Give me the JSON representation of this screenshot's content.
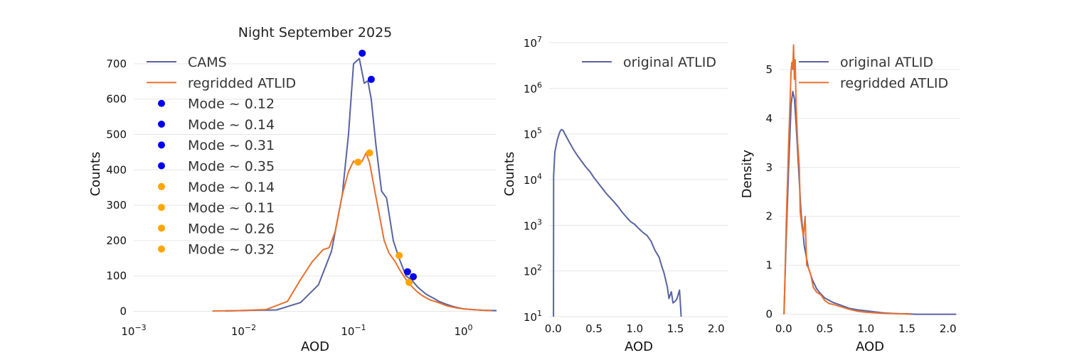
{
  "colors": {
    "blue_line": "#5863a1",
    "orange_line": "#e8702e",
    "blue_marker": "#0000ee",
    "orange_marker": "#ffa500"
  },
  "chart_data": [
    {
      "type": "line",
      "title": "Night September 2025",
      "xlabel": "AOD",
      "ylabel": "Counts",
      "xscale": "log",
      "xlim": [
        0.001,
        2
      ],
      "ylim": [
        -15,
        760
      ],
      "grid": "horizontal",
      "legend_position": "top-left",
      "xticks": [
        {
          "value": 0.001,
          "base": "10",
          "exp": "−3"
        },
        {
          "value": 0.01,
          "base": "10",
          "exp": "−2"
        },
        {
          "value": 0.1,
          "base": "10",
          "exp": "−1"
        },
        {
          "value": 1,
          "base": "10",
          "exp": "0"
        }
      ],
      "yticks": [
        {
          "value": 0,
          "label": "0"
        },
        {
          "value": 100,
          "label": "100"
        },
        {
          "value": 200,
          "label": "200"
        },
        {
          "value": 300,
          "label": "300"
        },
        {
          "value": 400,
          "label": "400"
        },
        {
          "value": 500,
          "label": "500"
        },
        {
          "value": 600,
          "label": "600"
        },
        {
          "value": 700,
          "label": "700"
        }
      ],
      "series": [
        {
          "name": "CAMS",
          "color": "#5863a1",
          "x": [
            0.0068,
            0.012,
            0.02,
            0.033,
            0.048,
            0.063,
            0.079,
            0.09,
            0.1,
            0.113,
            0.125,
            0.135,
            0.145,
            0.16,
            0.18,
            0.2,
            0.23,
            0.26,
            0.3,
            0.34,
            0.38,
            0.42,
            0.46,
            0.5,
            0.55,
            0.6,
            0.7,
            0.8,
            0.9,
            1.0,
            1.2,
            1.5,
            2.0
          ],
          "y": [
            1,
            3,
            4,
            25,
            75,
            170,
            330,
            500,
            700,
            715,
            645,
            652,
            600,
            470,
            340,
            320,
            200,
            150,
            100,
            88,
            70,
            58,
            48,
            42,
            35,
            28,
            20,
            14,
            10,
            7,
            5,
            3,
            2
          ]
        },
        {
          "name": "regridded ATLID",
          "color": "#e8702e",
          "x": [
            0.0052,
            0.009,
            0.016,
            0.025,
            0.033,
            0.042,
            0.053,
            0.06,
            0.068,
            0.079,
            0.09,
            0.1,
            0.11,
            0.12,
            0.13,
            0.14,
            0.15,
            0.17,
            0.19,
            0.21,
            0.24,
            0.26,
            0.3,
            0.34,
            0.38,
            0.42,
            0.46,
            0.5,
            0.55,
            0.6,
            0.7,
            0.8,
            0.9,
            1.0,
            1.2,
            1.5,
            1.8
          ],
          "y": [
            1,
            2,
            5,
            28,
            90,
            140,
            175,
            180,
            225,
            330,
            395,
            425,
            415,
            425,
            448,
            420,
            370,
            280,
            200,
            165,
            140,
            120,
            90,
            70,
            55,
            45,
            38,
            32,
            28,
            24,
            16,
            12,
            9,
            7,
            5,
            3,
            2
          ]
        }
      ],
      "modes": [
        {
          "label": "Mode ~ 0.12",
          "x": 0.12,
          "y": 730,
          "color": "#0000ee"
        },
        {
          "label": "Mode ~ 0.14",
          "x": 0.145,
          "y": 656,
          "color": "#0000ee"
        },
        {
          "label": "Mode ~ 0.31",
          "x": 0.31,
          "y": 112,
          "color": "#0000ee"
        },
        {
          "label": "Mode ~ 0.35",
          "x": 0.35,
          "y": 98,
          "color": "#0000ee"
        },
        {
          "label": "Mode ~ 0.14",
          "x": 0.14,
          "y": 448,
          "color": "#ffa500"
        },
        {
          "label": "Mode ~ 0.11",
          "x": 0.11,
          "y": 422,
          "color": "#ffa500"
        },
        {
          "label": "Mode ~ 0.26",
          "x": 0.26,
          "y": 158,
          "color": "#ffa500"
        },
        {
          "label": "Mode ~ 0.32",
          "x": 0.32,
          "y": 82,
          "color": "#ffa500"
        }
      ]
    },
    {
      "type": "line",
      "title": "",
      "xlabel": "AOD",
      "ylabel": "Counts",
      "yscale": "log",
      "xlim": [
        -0.05,
        2.15
      ],
      "ylim": [
        10,
        10000000
      ],
      "grid": "horizontal",
      "legend_position": "top-right",
      "xticks": [
        {
          "value": 0,
          "label": "0.0"
        },
        {
          "value": 0.5,
          "label": "0.5"
        },
        {
          "value": 1.0,
          "label": "1.0"
        },
        {
          "value": 1.5,
          "label": "1.5"
        },
        {
          "value": 2.0,
          "label": "2.0"
        }
      ],
      "yticks": [
        {
          "value": 10,
          "base": "10",
          "exp": "1"
        },
        {
          "value": 100,
          "base": "10",
          "exp": "2"
        },
        {
          "value": 1000,
          "base": "10",
          "exp": "3"
        },
        {
          "value": 10000,
          "base": "10",
          "exp": "4"
        },
        {
          "value": 100000,
          "base": "10",
          "exp": "5"
        },
        {
          "value": 1000000,
          "base": "10",
          "exp": "6"
        },
        {
          "value": 10000000,
          "base": "10",
          "exp": "7"
        }
      ],
      "series": [
        {
          "name": "original ATLID",
          "color": "#5863a1",
          "x": [
            0.003,
            0.005,
            0.02,
            0.05,
            0.08,
            0.1,
            0.12,
            0.15,
            0.2,
            0.25,
            0.3,
            0.35,
            0.4,
            0.45,
            0.5,
            0.55,
            0.6,
            0.65,
            0.7,
            0.75,
            0.8,
            0.85,
            0.9,
            0.95,
            1.0,
            1.05,
            1.1,
            1.15,
            1.2,
            1.25,
            1.3,
            1.33,
            1.36,
            1.4,
            1.42,
            1.45,
            1.47,
            1.5,
            1.52,
            1.55,
            1.57
          ],
          "y": [
            10,
            12000,
            40000,
            75000,
            110000,
            125000,
            120000,
            95000,
            65000,
            45000,
            33000,
            25000,
            19000,
            15000,
            11000,
            8500,
            6500,
            5000,
            4000,
            3200,
            2500,
            1900,
            1500,
            1200,
            1050,
            850,
            700,
            600,
            450,
            280,
            200,
            130,
            90,
            45,
            25,
            35,
            20,
            22,
            25,
            38,
            10
          ]
        }
      ]
    },
    {
      "type": "line",
      "title": "",
      "xlabel": "AOD",
      "ylabel": "Density",
      "xlim": [
        -0.05,
        2.15
      ],
      "ylim": [
        -0.05,
        5.55
      ],
      "grid": "horizontal",
      "legend_position": "top-center",
      "xticks": [
        {
          "value": 0,
          "label": "0.0"
        },
        {
          "value": 0.5,
          "label": "0.5"
        },
        {
          "value": 1.0,
          "label": "1.0"
        },
        {
          "value": 1.5,
          "label": "1.5"
        },
        {
          "value": 2.0,
          "label": "2.0"
        }
      ],
      "yticks": [
        {
          "value": 0,
          "label": "0"
        },
        {
          "value": 1,
          "label": "1"
        },
        {
          "value": 2,
          "label": "2"
        },
        {
          "value": 3,
          "label": "3"
        },
        {
          "value": 4,
          "label": "4"
        },
        {
          "value": 5,
          "label": "5"
        }
      ],
      "series": [
        {
          "name": "original ATLID",
          "color": "#5863a1",
          "x": [
            0.003,
            0.03,
            0.06,
            0.09,
            0.11,
            0.13,
            0.15,
            0.18,
            0.21,
            0.25,
            0.3,
            0.35,
            0.4,
            0.45,
            0.5,
            0.6,
            0.7,
            0.8,
            0.9,
            1.0,
            1.1,
            1.2,
            1.3,
            1.4,
            1.5,
            1.6,
            1.8,
            2.0,
            2.1
          ],
          "y": [
            0,
            1.5,
            3.0,
            4.3,
            4.55,
            4.4,
            3.9,
            3.0,
            2.1,
            1.4,
            0.95,
            0.7,
            0.52,
            0.42,
            0.33,
            0.24,
            0.18,
            0.12,
            0.09,
            0.07,
            0.05,
            0.03,
            0.02,
            0.01,
            0.01,
            0.0,
            0.0,
            0.0,
            0.0
          ]
        },
        {
          "name": "regridded ATLID",
          "color": "#e8702e",
          "x": [
            0.005,
            0.03,
            0.06,
            0.09,
            0.1,
            0.11,
            0.12,
            0.13,
            0.14,
            0.15,
            0.17,
            0.19,
            0.2,
            0.22,
            0.24,
            0.26,
            0.28,
            0.3,
            0.33,
            0.36,
            0.4,
            0.45,
            0.5,
            0.55,
            0.6,
            0.7,
            0.8,
            0.9,
            1.0,
            1.2,
            1.4,
            1.55
          ],
          "y": [
            0,
            1.8,
            3.5,
            5.0,
            5.15,
            5.0,
            5.5,
            4.8,
            5.2,
            4.3,
            3.5,
            3.0,
            2.1,
            1.8,
            1.6,
            2.0,
            1.0,
            0.95,
            0.8,
            0.55,
            0.45,
            0.4,
            0.28,
            0.22,
            0.2,
            0.15,
            0.1,
            0.06,
            0.04,
            0.02,
            0.01,
            0.0
          ]
        }
      ]
    }
  ]
}
